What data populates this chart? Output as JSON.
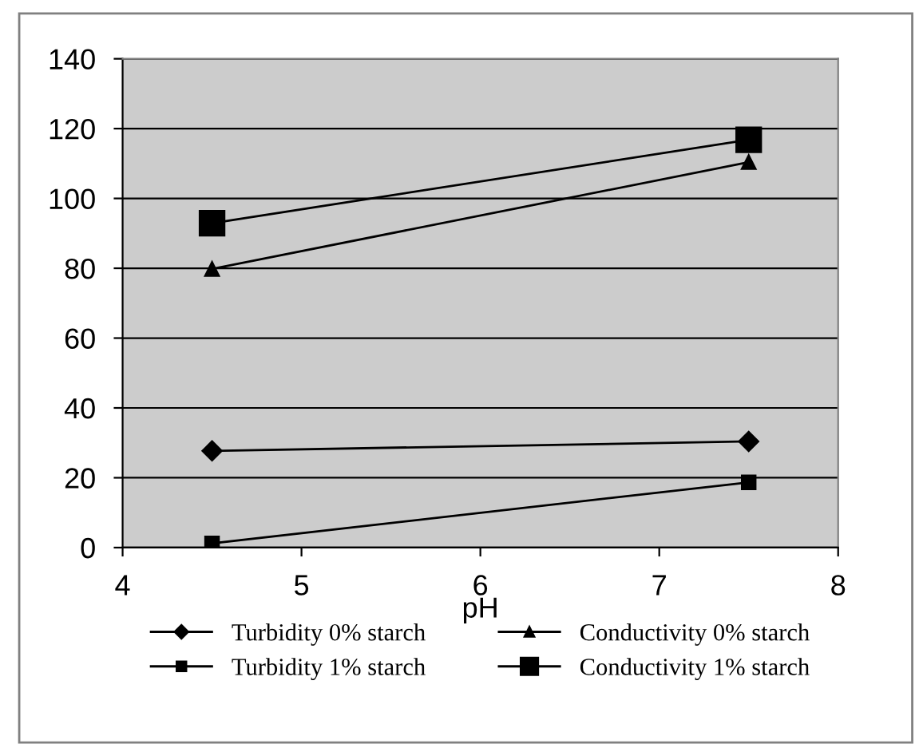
{
  "chart_data": {
    "type": "line",
    "xlabel": "pH",
    "xlim": [
      4,
      8
    ],
    "xticks": [
      4,
      5,
      6,
      7,
      8
    ],
    "ylim": [
      0,
      140
    ],
    "yticks": [
      0,
      20,
      40,
      60,
      80,
      100,
      120,
      140
    ],
    "grid": "y",
    "legend": "bottom",
    "line_style": "solid",
    "x": [
      4.5,
      7.5
    ],
    "series": [
      {
        "name": "Turbidity 0% starch",
        "color": "#000000",
        "marker": "diamond",
        "values": [
          27.7,
          30.4
        ]
      },
      {
        "name": "Conductivity 0% starch",
        "color": "#000000",
        "marker": "triangle",
        "values": [
          79.8,
          110.4
        ]
      },
      {
        "name": "Turbidity 1% starch",
        "color": "#000000",
        "marker": "square",
        "values": [
          1.2,
          18.7
        ]
      },
      {
        "name": "Conductivity 1% starch",
        "color": "#000000",
        "marker": "square",
        "values": [
          92.9,
          116.8
        ]
      }
    ]
  }
}
